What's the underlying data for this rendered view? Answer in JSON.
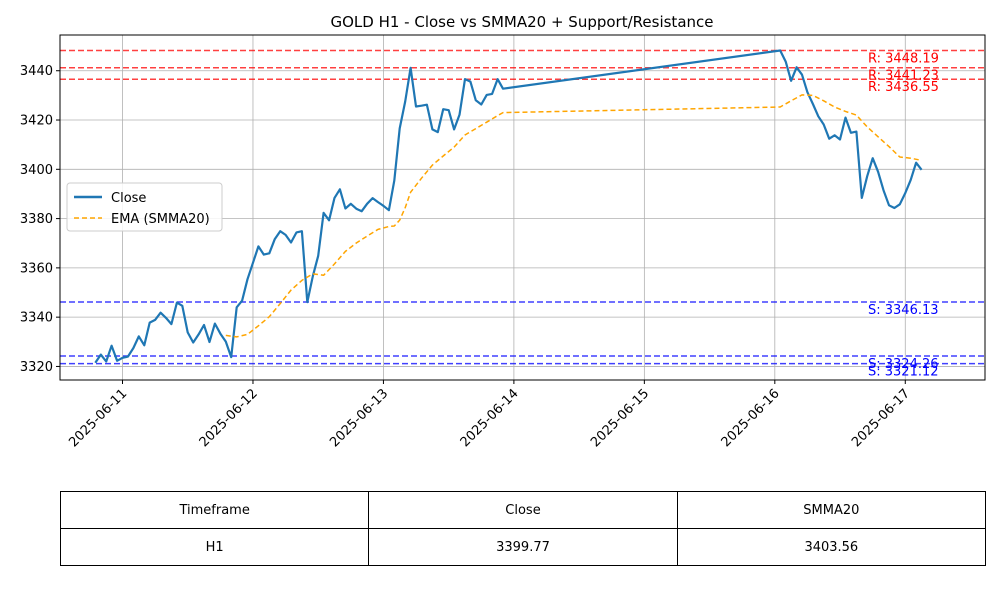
{
  "chart_data": {
    "type": "line",
    "title": "GOLD H1 - Close vs SMMA20 + Support/Resistance",
    "xlabel": "",
    "ylabel": "",
    "xlim": [
      "2025-06-10 12:30",
      "2025-06-17 14:40"
    ],
    "ylim": [
      3314.5,
      3454.5
    ],
    "x_ticks": [
      "2025-06-11",
      "2025-06-12",
      "2025-06-13",
      "2025-06-14",
      "2025-06-15",
      "2025-06-16",
      "2025-06-17"
    ],
    "y_ticks": [
      3320,
      3340,
      3360,
      3380,
      3400,
      3420,
      3440
    ],
    "grid": true,
    "legend": {
      "position": "center-left",
      "entries": [
        "Close",
        "EMA (SMMA20)"
      ]
    },
    "series": [
      {
        "name": "Close",
        "color": "#1f77b4",
        "style": "solid",
        "x": [
          "2025-06-10 19:00",
          "2025-06-10 20:00",
          "2025-06-10 21:00",
          "2025-06-10 22:00",
          "2025-06-10 23:00",
          "2025-06-11 00:00",
          "2025-06-11 01:00",
          "2025-06-11 02:00",
          "2025-06-11 03:00",
          "2025-06-11 04:00",
          "2025-06-11 05:00",
          "2025-06-11 06:00",
          "2025-06-11 07:00",
          "2025-06-11 08:00",
          "2025-06-11 09:00",
          "2025-06-11 10:00",
          "2025-06-11 11:00",
          "2025-06-11 12:00",
          "2025-06-11 13:00",
          "2025-06-11 14:00",
          "2025-06-11 15:00",
          "2025-06-11 16:00",
          "2025-06-11 17:00",
          "2025-06-11 18:00",
          "2025-06-11 19:00",
          "2025-06-11 20:00",
          "2025-06-11 21:00",
          "2025-06-11 22:00",
          "2025-06-11 23:00",
          "2025-06-12 00:00",
          "2025-06-12 01:00",
          "2025-06-12 02:00",
          "2025-06-12 03:00",
          "2025-06-12 04:00",
          "2025-06-12 05:00",
          "2025-06-12 06:00",
          "2025-06-12 07:00",
          "2025-06-12 08:00",
          "2025-06-12 09:00",
          "2025-06-12 10:00",
          "2025-06-12 11:00",
          "2025-06-12 12:00",
          "2025-06-12 13:00",
          "2025-06-12 14:00",
          "2025-06-12 15:00",
          "2025-06-12 16:00",
          "2025-06-12 17:00",
          "2025-06-12 18:00",
          "2025-06-12 19:00",
          "2025-06-12 20:00",
          "2025-06-12 21:00",
          "2025-06-12 22:00",
          "2025-06-12 23:00",
          "2025-06-13 00:00",
          "2025-06-13 01:00",
          "2025-06-13 02:00",
          "2025-06-13 03:00",
          "2025-06-13 04:00",
          "2025-06-13 05:00",
          "2025-06-13 06:00",
          "2025-06-13 07:00",
          "2025-06-13 08:00",
          "2025-06-13 09:00",
          "2025-06-13 10:00",
          "2025-06-13 11:00",
          "2025-06-13 12:00",
          "2025-06-13 13:00",
          "2025-06-13 14:00",
          "2025-06-13 15:00",
          "2025-06-13 16:00",
          "2025-06-13 17:00",
          "2025-06-13 18:00",
          "2025-06-13 19:00",
          "2025-06-13 20:00",
          "2025-06-13 21:00",
          "2025-06-13 22:00",
          "2025-06-16 01:00",
          "2025-06-16 02:00",
          "2025-06-16 03:00",
          "2025-06-16 04:00",
          "2025-06-16 05:00",
          "2025-06-16 06:00",
          "2025-06-16 07:00",
          "2025-06-16 08:00",
          "2025-06-16 09:00",
          "2025-06-16 10:00",
          "2025-06-16 11:00",
          "2025-06-16 12:00",
          "2025-06-16 13:00",
          "2025-06-16 14:00",
          "2025-06-16 15:00",
          "2025-06-16 16:00",
          "2025-06-16 17:00",
          "2025-06-16 18:00",
          "2025-06-16 19:00",
          "2025-06-16 20:00",
          "2025-06-16 21:00",
          "2025-06-16 22:00",
          "2025-06-16 23:00",
          "2025-06-17 00:00",
          "2025-06-17 01:00",
          "2025-06-17 02:00",
          "2025-06-17 03:00"
        ],
        "values": [
          3321.5,
          3324.8,
          3322.0,
          3328.4,
          3322.3,
          3323.5,
          3324.0,
          3327.5,
          3332.2,
          3328.6,
          3337.8,
          3338.9,
          3341.8,
          3339.7,
          3337.2,
          3345.9,
          3344.6,
          3333.8,
          3329.7,
          3333.0,
          3336.8,
          3329.9,
          3337.4,
          3333.3,
          3330.1,
          3323.8,
          3344.0,
          3346.7,
          3355.4,
          3362.1,
          3368.7,
          3365.4,
          3365.9,
          3371.6,
          3374.9,
          3373.4,
          3370.3,
          3374.4,
          3374.9,
          3346.1,
          3356.6,
          3364.9,
          3382.3,
          3379.3,
          3388.4,
          3391.9,
          3384.1,
          3386.0,
          3384.0,
          3383.0,
          3386.0,
          3388.3,
          3386.7,
          3385.2,
          3383.4,
          3395.4,
          3416.6,
          3427.5,
          3441.2,
          3425.5,
          3425.8,
          3426.2,
          3416.2,
          3415.1,
          3424.4,
          3424.0,
          3416.2,
          3422.1,
          3436.6,
          3435.6,
          3428.0,
          3426.3,
          3430.2,
          3430.6,
          3436.6,
          3432.7,
          3448.2,
          3443.7,
          3435.9,
          3441.4,
          3438.4,
          3431.3,
          3426.5,
          3421.5,
          3418.2,
          3412.4,
          3413.8,
          3412.1,
          3421.0,
          3414.8,
          3415.3,
          3388.4,
          3397.2,
          3404.5,
          3399.0,
          3391.5,
          3385.4,
          3384.3,
          3385.8,
          3390.4,
          3395.7,
          3402.7,
          3399.8
        ]
      },
      {
        "name": "EMA (SMMA20)",
        "color": "#ffa500",
        "style": "dashed",
        "x": [
          "2025-06-11 19:00",
          "2025-06-11 21:00",
          "2025-06-11 23:00",
          "2025-06-12 01:00",
          "2025-06-12 03:00",
          "2025-06-12 05:00",
          "2025-06-12 07:00",
          "2025-06-12 09:00",
          "2025-06-12 11:00",
          "2025-06-12 13:00",
          "2025-06-12 15:00",
          "2025-06-12 17:00",
          "2025-06-12 19:00",
          "2025-06-12 21:00",
          "2025-06-12 23:00",
          "2025-06-13 01:00",
          "2025-06-13 02:00",
          "2025-06-13 03:00",
          "2025-06-13 04:00",
          "2025-06-13 05:00",
          "2025-06-13 07:00",
          "2025-06-13 09:00",
          "2025-06-13 11:00",
          "2025-06-13 13:00",
          "2025-06-13 15:00",
          "2025-06-13 17:00",
          "2025-06-13 19:00",
          "2025-06-13 21:00",
          "2025-06-13 22:00",
          "2025-06-16 01:00",
          "2025-06-16 03:00",
          "2025-06-16 05:00",
          "2025-06-16 07:00",
          "2025-06-16 09:00",
          "2025-06-16 11:00",
          "2025-06-16 13:00",
          "2025-06-16 15:00",
          "2025-06-16 17:00",
          "2025-06-16 19:00",
          "2025-06-16 21:00",
          "2025-06-16 23:00",
          "2025-06-17 01:00",
          "2025-06-17 03:00"
        ],
        "values": [
          3332.6,
          3332.0,
          3333.0,
          3336.5,
          3340.2,
          3345.5,
          3351.0,
          3354.9,
          3357.6,
          3357.0,
          3361.6,
          3366.7,
          3370.1,
          3372.9,
          3375.6,
          3376.8,
          3377.0,
          3379.4,
          3384.4,
          3390.7,
          3396.4,
          3401.7,
          3405.4,
          3409.0,
          3413.9,
          3416.5,
          3419.1,
          3421.8,
          3423.0,
          3425.3,
          3427.8,
          3430.2,
          3430.0,
          3427.8,
          3425.3,
          3423.5,
          3422.0,
          3417.2,
          3413.2,
          3409.2,
          3405.0,
          3404.5,
          3403.6
        ]
      }
    ],
    "levels": [
      {
        "kind": "resistance",
        "value": 3448.19,
        "label": "R: 3448.19",
        "color": "#ff0000"
      },
      {
        "kind": "resistance",
        "value": 3441.23,
        "label": "R: 3441.23",
        "color": "#ff0000"
      },
      {
        "kind": "resistance",
        "value": 3436.55,
        "label": "R: 3436.55",
        "color": "#ff0000"
      },
      {
        "kind": "support",
        "value": 3346.13,
        "label": "S: 3346.13",
        "color": "#0000ff"
      },
      {
        "kind": "support",
        "value": 3324.26,
        "label": "S: 3324.26",
        "color": "#0000ff"
      },
      {
        "kind": "support",
        "value": 3321.12,
        "label": "S: 3321.12",
        "color": "#0000ff"
      }
    ]
  },
  "table": {
    "headers": [
      "Timeframe",
      "Close",
      "SMMA20"
    ],
    "rows": [
      [
        "H1",
        "3399.77",
        "3403.56"
      ]
    ]
  }
}
